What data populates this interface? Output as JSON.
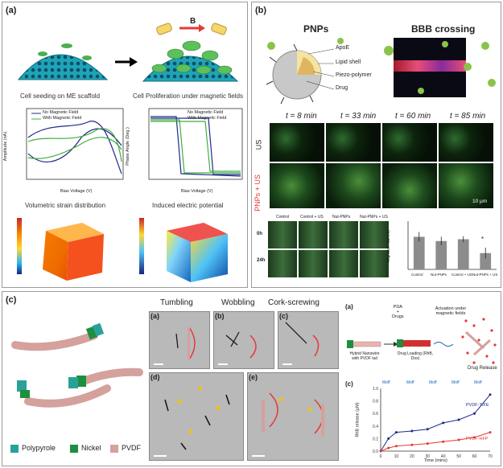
{
  "panel_a": {
    "label": "(a)",
    "magnet_label": "B",
    "caption_left": "Cell seeding on ME scaffold",
    "caption_right": "Cell Proliferation under magnetic fields",
    "plot_left": {
      "legend": [
        "No Magnetic Field",
        "With Magnetic Field"
      ],
      "ylabel": "Amplitude (nA)",
      "xlabel": "Bias Voltage (V)",
      "xticks": [
        "-9",
        "-6",
        "-3",
        "0",
        "3",
        "6",
        "9"
      ]
    },
    "plot_right": {
      "legend": [
        "No Magnetic Field",
        "With Magnetic Field"
      ],
      "ylabel": "Phase Angle (Deg.)",
      "xlabel": "Bias Voltage (V)",
      "xticks": [
        "-9",
        "-6",
        "-3",
        "0",
        "3",
        "6",
        "9"
      ],
      "yticks": [
        "180",
        "150",
        "120",
        "90",
        "60",
        "30",
        "0"
      ]
    },
    "title_strain": "Volumetric strain distribution",
    "title_potential": "Induced electric potential"
  },
  "panel_b": {
    "label": "(b)",
    "title_pnps": "PNPs",
    "title_bbb": "BBB crossing",
    "parts": [
      "ApoE",
      "Lipid shell",
      "Piezo-polymer",
      "Drug"
    ],
    "times": [
      "t = 8 min",
      "t = 33 min",
      "t = 60 min",
      "t = 85 min"
    ],
    "row_us": "US",
    "row_pnps_us": "PNPs + US",
    "scale": "10 μm",
    "wound_cols": [
      "Control",
      "Control + US",
      "Nut-PNPs",
      "Nut-PNPs + US"
    ],
    "wound_rows": [
      "0h",
      "24h"
    ],
    "bar_categories": [
      "Control",
      "Nut-PNPs",
      "Control + US",
      "Nut-PNPs + US"
    ],
    "bar_ylabel": "Migration rate (%)",
    "bar_star": "*"
  },
  "panel_c": {
    "label": "(c)",
    "legend": [
      {
        "name": "Polypyrole",
        "color": "#2aa198"
      },
      {
        "name": "Nickel",
        "color": "#1e8f3e"
      },
      {
        "name": "PVDF",
        "color": "#d4a19c"
      }
    ],
    "modes": [
      "Tumbling",
      "Wobbling",
      "Cork-screwing"
    ],
    "sublabels": [
      "(a)",
      "(b)",
      "(c)",
      "(d)",
      "(e)"
    ],
    "schematic_label": "(a)",
    "pda_drugs": "PDA\n+\nDrugs",
    "actuation": "Actuation under magnetic fields",
    "hybrid": "Hybrid Nanowire with PVDF tail",
    "loading": "Drug Loading (RhB, Dox)",
    "release": "Drug Release",
    "plot_label": "(c)",
    "release_ylabel": "RhB release (μM)",
    "release_xlabel": "Time (mins)",
    "release_markers": [
      "Moff",
      "Moff",
      "Moff",
      "Moff",
      "Moff"
    ],
    "series_names": [
      "PVDF-TrFE",
      "PVDF-HFP"
    ]
  },
  "chart_data": [
    {
      "type": "bar",
      "categories": [
        "Control",
        "Nut-PNPs",
        "Control + US",
        "Nut-PNPs + US"
      ],
      "values": [
        54,
        47,
        50,
        27
      ],
      "errors": [
        8,
        7,
        5,
        9
      ],
      "ylabel": "Migration rate (%)",
      "ylim": [
        0,
        80
      ]
    },
    {
      "type": "line",
      "x": [
        0,
        5,
        10,
        20,
        30,
        40,
        50,
        60,
        70
      ],
      "series": [
        {
          "name": "PVDF-TrFE",
          "values": [
            0.0,
            0.2,
            0.3,
            0.32,
            0.35,
            0.45,
            0.5,
            0.6,
            0.9
          ]
        },
        {
          "name": "PVDF-HFP",
          "values": [
            0.0,
            0.05,
            0.08,
            0.1,
            0.12,
            0.15,
            0.18,
            0.22,
            0.3
          ]
        }
      ],
      "xlabel": "Time (mins)",
      "ylabel": "RhB release (μM)",
      "xticks": [
        "0",
        "10",
        "20",
        "30",
        "40",
        "50",
        "60",
        "70"
      ],
      "yticks": [
        "0.0",
        "0.2",
        "0.4",
        "0.6",
        "0.8",
        "1.0"
      ],
      "xlim": [
        0,
        70
      ],
      "ylim": [
        0,
        1.0
      ]
    }
  ],
  "colors": {
    "navy": "#1f2a8a",
    "green": "#3fae3f",
    "red": "#e53935",
    "teal": "#1db5c4"
  }
}
